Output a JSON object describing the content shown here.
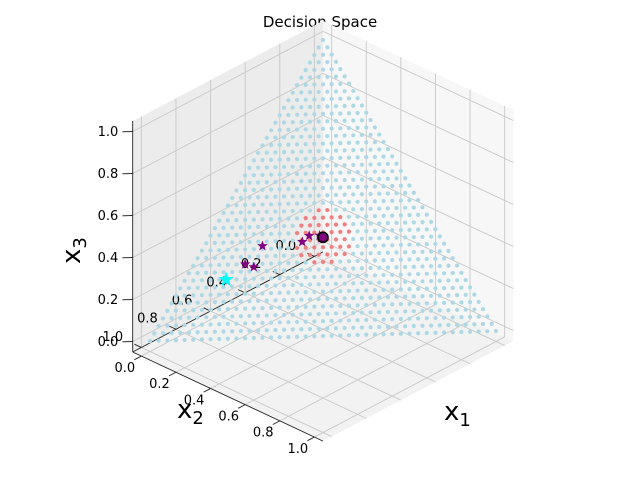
{
  "chart_data": {
    "type": "scatter",
    "title": "Decision Space",
    "projection": "3d",
    "grid": true,
    "axes": {
      "x1": {
        "label": "x",
        "subscript": "1",
        "range": [
          0,
          1
        ],
        "ticks": [
          "0.0",
          "0.2",
          "0.4",
          "0.6",
          "0.8",
          "1.0"
        ]
      },
      "x2": {
        "label": "x",
        "subscript": "2",
        "range": [
          0,
          1
        ],
        "ticks": [
          "0.0",
          "0.2",
          "0.4",
          "0.6",
          "0.8",
          "1.0"
        ]
      },
      "x3": {
        "label": "x",
        "subscript": "3",
        "range": [
          0,
          1
        ],
        "ticks": [
          "0.0",
          "0.2",
          "0.4",
          "0.6",
          "0.8",
          "1.0"
        ]
      }
    },
    "series": [
      {
        "kind": "simplex-grid",
        "constraint": "x1+x2+x3=1",
        "color": "#add8e6",
        "marker": "circle"
      },
      {
        "kind": "region",
        "center": [
          0.333,
          0.333,
          0.333
        ],
        "radius": 0.12,
        "color": "#f08080",
        "marker": "circle"
      },
      {
        "kind": "trajectory",
        "color": "#800080",
        "marker": "star",
        "points": [
          [
            0.18,
            0.58,
            0.24
          ],
          [
            0.15,
            0.6,
            0.25
          ],
          [
            0.17,
            0.52,
            0.31
          ],
          [
            0.28,
            0.4,
            0.32
          ],
          [
            0.29,
            0.37,
            0.34
          ],
          [
            0.32,
            0.34,
            0.34
          ],
          [
            0.33,
            0.34,
            0.33
          ]
        ]
      },
      {
        "kind": "start",
        "color": "#00ffff",
        "marker": "star",
        "points": [
          [
            0.12,
            0.68,
            0.2
          ]
        ]
      },
      {
        "kind": "end",
        "color": "#000000",
        "marker": "circle",
        "points": [
          [
            0.333,
            0.333,
            0.333
          ]
        ]
      }
    ]
  }
}
